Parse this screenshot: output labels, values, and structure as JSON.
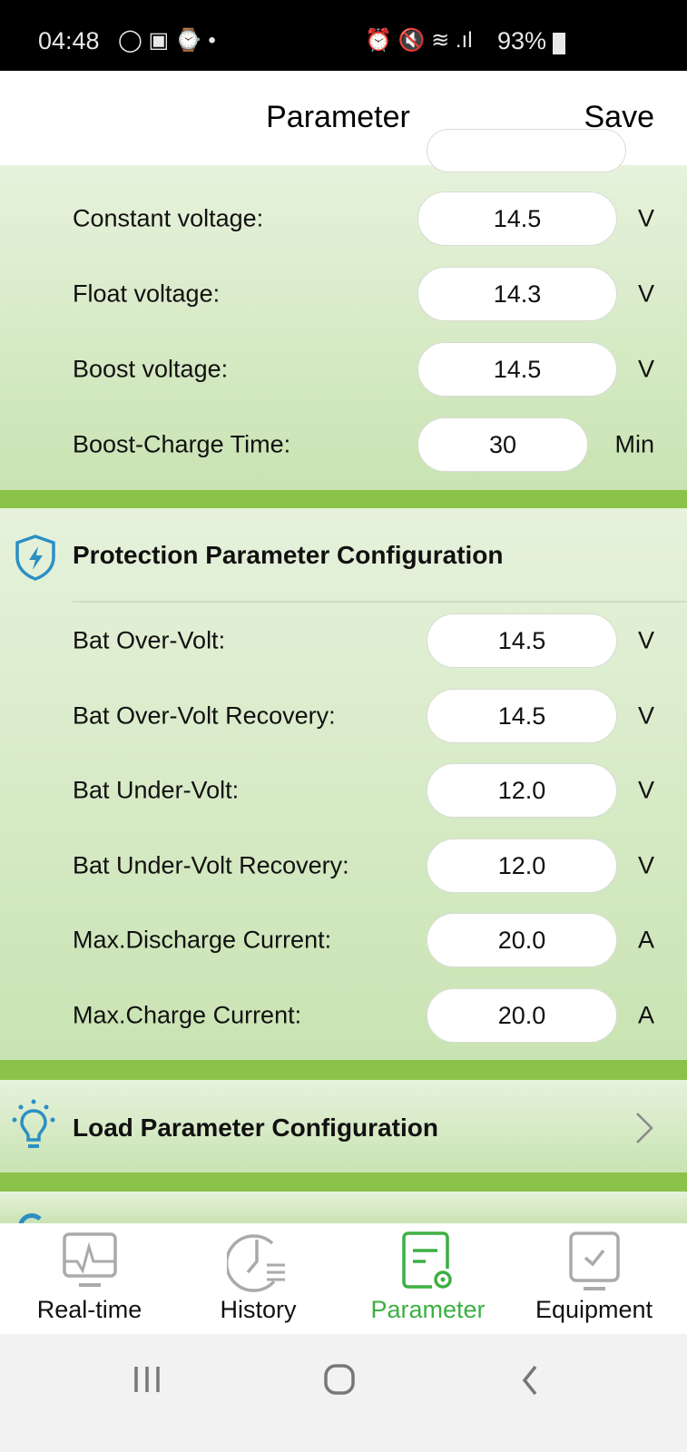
{
  "status_bar": {
    "time": "04:48",
    "battery": "93%"
  },
  "header": {
    "title": "Parameter",
    "save_label": "Save"
  },
  "charging_section": {
    "rows": [
      {
        "label": "Constant voltage:",
        "value": "14.5",
        "unit": "V"
      },
      {
        "label": "Float voltage:",
        "value": "14.3",
        "unit": "V"
      },
      {
        "label": "Boost voltage:",
        "value": "14.5",
        "unit": "V"
      },
      {
        "label": "Boost-Charge Time:",
        "value": "30",
        "unit": "Min"
      }
    ]
  },
  "protection_section": {
    "title": "Protection Parameter Configuration",
    "icon": "shield-bolt-icon",
    "rows": [
      {
        "label": "Bat Over-Volt:",
        "value": "14.5",
        "unit": "V"
      },
      {
        "label": "Bat Over-Volt Recovery:",
        "value": "14.5",
        "unit": "V"
      },
      {
        "label": "Bat Under-Volt:",
        "value": "12.0",
        "unit": "V"
      },
      {
        "label": "Bat Under-Volt Recovery:",
        "value": "12.0",
        "unit": "V"
      },
      {
        "label": "Max.Discharge Current:",
        "value": "20.0",
        "unit": "A"
      },
      {
        "label": "Max.Charge Current:",
        "value": "20.0",
        "unit": "A"
      }
    ]
  },
  "load_section": {
    "title": "Load Parameter Configuration",
    "icon": "lightbulb-icon"
  },
  "tabs": [
    {
      "label": "Real-time",
      "icon": "monitor-pulse-icon"
    },
    {
      "label": "History",
      "icon": "clock-list-icon"
    },
    {
      "label": "Parameter",
      "icon": "document-gear-icon",
      "active": true
    },
    {
      "label": "Equipment",
      "icon": "device-check-icon"
    }
  ],
  "colors": {
    "accent": "#3cb043",
    "separator": "#8bc34a",
    "icon_blue": "#2a8fc4"
  }
}
